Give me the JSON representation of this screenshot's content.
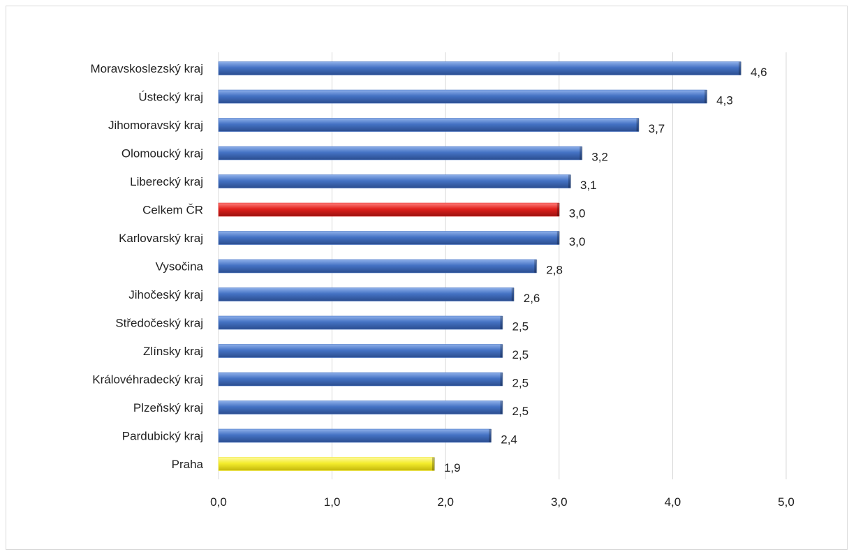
{
  "chart_data": {
    "type": "bar",
    "orientation": "horizontal",
    "categories": [
      "Moravskoslezský kraj",
      "Ústecký kraj",
      "Jihomoravský kraj",
      "Olomoucký kraj",
      "Liberecký kraj",
      "Celkem ČR",
      "Karlovarský kraj",
      "Vysočina",
      "Jihočeský kraj",
      "Středočeský kraj",
      "Zlínsky kraj",
      "Královéhradecký kraj",
      "Plzeňský kraj",
      "Pardubický kraj",
      "Praha"
    ],
    "values": [
      4.6,
      4.3,
      3.7,
      3.2,
      3.1,
      3.0,
      3.0,
      2.8,
      2.6,
      2.5,
      2.5,
      2.5,
      2.5,
      2.4,
      1.9
    ],
    "value_labels": [
      "4,6",
      "4,3",
      "3,7",
      "3,2",
      "3,1",
      "3,0",
      "3,0",
      "2,8",
      "2,6",
      "2,5",
      "2,5",
      "2,5",
      "2,5",
      "2,4",
      "1,9"
    ],
    "bar_colors": [
      "#4472c4",
      "#4472c4",
      "#4472c4",
      "#4472c4",
      "#4472c4",
      "#e0201c",
      "#4472c4",
      "#4472c4",
      "#4472c4",
      "#4472c4",
      "#4472c4",
      "#4472c4",
      "#4472c4",
      "#4472c4",
      "#f2e82a"
    ],
    "xlim": [
      0,
      5
    ],
    "xticks": [
      0,
      1,
      2,
      3,
      4,
      5
    ],
    "xtick_labels": [
      "0,0",
      "1,0",
      "2,0",
      "3,0",
      "4,0",
      "5,0"
    ],
    "title": "",
    "xlabel": "",
    "ylabel": "",
    "grid": "vertical",
    "legend": "none"
  }
}
